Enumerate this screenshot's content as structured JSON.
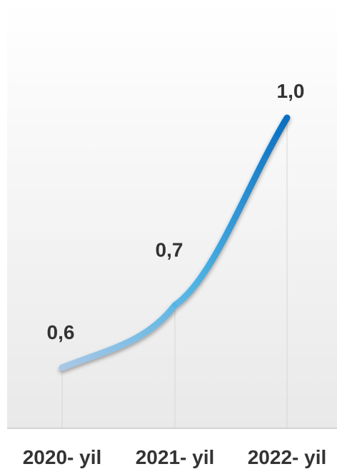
{
  "chart_data": {
    "type": "line",
    "categories": [
      "2020- yil",
      "2021- yil",
      "2022- yil"
    ],
    "series": [
      {
        "values": [
          0.6,
          0.7,
          1.0
        ],
        "data_labels": [
          "0,6",
          "0,7",
          "1,0"
        ]
      }
    ],
    "title": "",
    "xlabel": "",
    "ylabel": "",
    "grid": "vertical guide lines at each category",
    "colors": {
      "line_start": "#a9c7e6",
      "line_mid": "#4fb3e3",
      "line_end": "#0a6fc2",
      "background_top": "#ffffff",
      "background_bottom": "#e9e9e9",
      "text": "#333333",
      "guide": "#d6d6d6",
      "baseline": "#c8c8c8"
    }
  }
}
